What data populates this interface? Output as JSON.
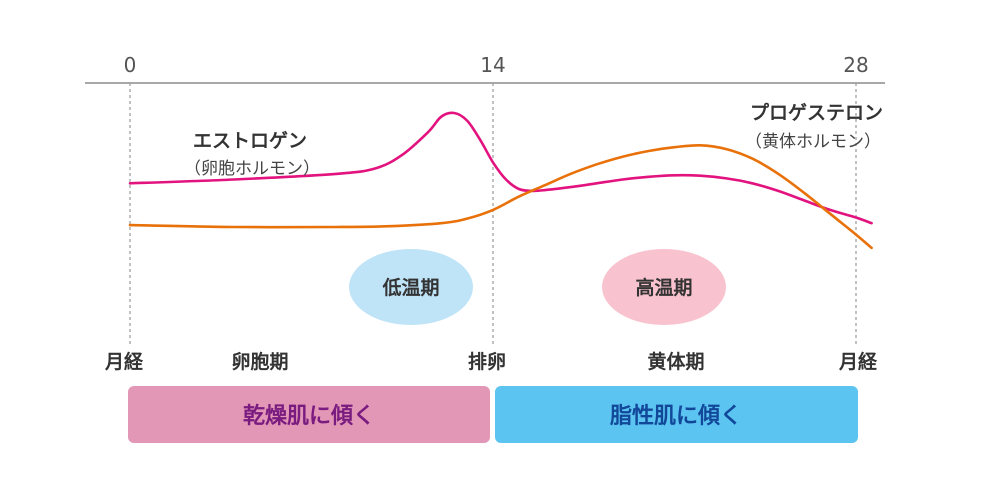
{
  "chart_data": {
    "type": "line",
    "x_ticks": [
      "0",
      "14",
      "28"
    ],
    "xlim": [
      -0.2,
      28.6
    ],
    "series": [
      {
        "name": "エストロゲン",
        "subtitle": "（卵胞ホルモン）",
        "color": "#e2127f",
        "x": [
          0,
          4,
          8,
          9.5,
          10.5,
          11.5,
          12,
          12.5,
          13,
          13.5,
          14,
          14.5,
          15,
          15.5,
          16,
          17,
          18,
          19,
          20,
          21,
          22,
          23,
          24,
          25,
          26,
          27,
          28,
          28.6
        ],
        "y": [
          2.15,
          2.25,
          2.4,
          2.55,
          2.9,
          3.5,
          3.9,
          4.0,
          3.8,
          3.3,
          2.7,
          2.25,
          2.0,
          1.95,
          1.97,
          2.05,
          2.15,
          2.25,
          2.32,
          2.36,
          2.35,
          2.28,
          2.15,
          1.95,
          1.7,
          1.45,
          1.25,
          1.1
        ]
      },
      {
        "name": "プロゲステロン",
        "subtitle": "（黄体ホルモン）",
        "color": "#e8710a",
        "x": [
          0,
          4,
          8,
          10,
          12,
          13,
          14,
          15,
          16,
          17,
          18,
          19,
          20,
          21,
          22,
          23,
          24,
          25,
          26,
          27,
          28,
          28.6
        ],
        "y": [
          1.05,
          1.0,
          1.0,
          1.02,
          1.1,
          1.22,
          1.45,
          1.8,
          2.1,
          2.4,
          2.65,
          2.85,
          3.0,
          3.1,
          3.15,
          3.05,
          2.8,
          2.4,
          1.9,
          1.35,
          0.8,
          0.45
        ]
      }
    ],
    "phase_labels": [
      "月経",
      "卵胞期",
      "排卵",
      "黄体期",
      "月経"
    ],
    "temperature_phases": [
      {
        "label": "低温期",
        "color": "#bfe3f7"
      },
      {
        "label": "高温期",
        "color": "#f8c3cf"
      }
    ],
    "skin_bands": [
      {
        "label": "乾燥肌に傾く",
        "fill": "#e397b7",
        "text_color": "#7a1b80"
      },
      {
        "label": "脂性肌に傾く",
        "fill": "#5bc4f0",
        "text_color": "#12489a"
      }
    ]
  }
}
